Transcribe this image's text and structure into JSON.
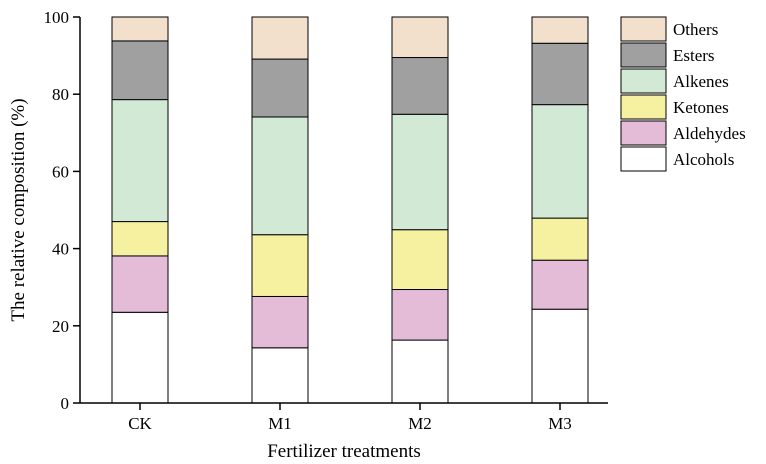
{
  "chart_data": {
    "type": "bar",
    "stacked": true,
    "xlabel": "Fertilizer treatments",
    "ylabel": "The relative composition (%)",
    "ylim": [
      0,
      100
    ],
    "yticks": [
      0,
      20,
      40,
      60,
      80,
      100
    ],
    "grid": false,
    "legend_position": "top-right",
    "categories": [
      "CK",
      "M1",
      "M2",
      "M3"
    ],
    "series": [
      {
        "name": "Alcohols",
        "color": "#ffffff",
        "values": [
          23.5,
          14.3,
          16.3,
          24.3
        ]
      },
      {
        "name": "Aldehydes",
        "color": "#e5bcd8",
        "values": [
          14.6,
          13.3,
          13.1,
          12.7
        ]
      },
      {
        "name": "Ketones",
        "color": "#f6f0a1",
        "values": [
          8.9,
          16.0,
          15.5,
          10.9
        ]
      },
      {
        "name": "Alkenes",
        "color": "#d2ead5",
        "values": [
          31.6,
          30.5,
          29.9,
          29.4
        ]
      },
      {
        "name": "Esters",
        "color": "#a0a0a0",
        "values": [
          15.2,
          15.0,
          14.7,
          15.9
        ]
      },
      {
        "name": "Others",
        "color": "#f2e0cd",
        "values": [
          6.2,
          10.9,
          10.5,
          6.8
        ]
      }
    ]
  }
}
